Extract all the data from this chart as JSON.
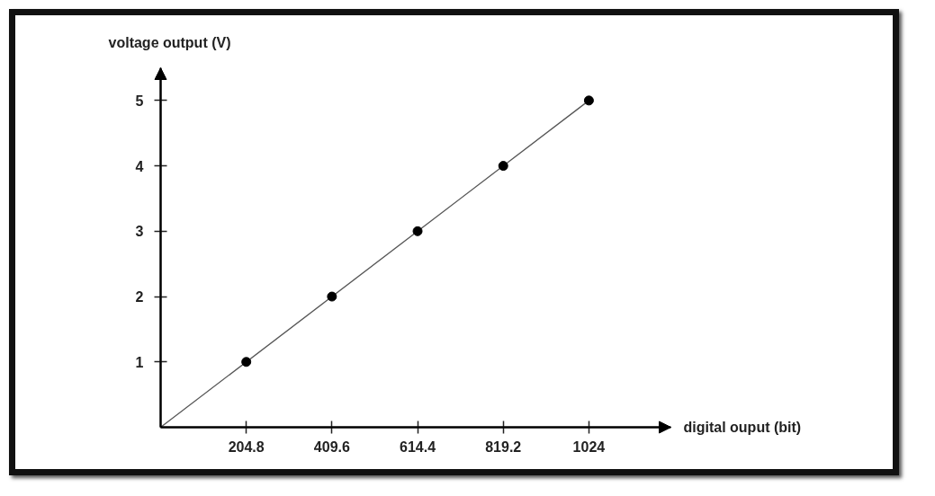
{
  "chart_data": {
    "type": "scatter",
    "xlabel": "digital ouput (bit)",
    "ylabel": "voltage output (V)",
    "xlim": [
      0,
      1220
    ],
    "ylim": [
      0,
      5.5
    ],
    "xticks": [
      204.8,
      409.6,
      614.4,
      819.2,
      1024
    ],
    "yticks": [
      1,
      2,
      3,
      4,
      5
    ],
    "series": [
      {
        "type": "line",
        "color": "#555555",
        "marker": "none",
        "x": [
          0,
          1024
        ],
        "values": [
          0,
          5
        ]
      },
      {
        "color": "#000000",
        "marker": "circle",
        "x": [
          204.8,
          409.6,
          614.4,
          819.2,
          1024
        ],
        "values": [
          1,
          2,
          3,
          4,
          5
        ]
      }
    ]
  }
}
